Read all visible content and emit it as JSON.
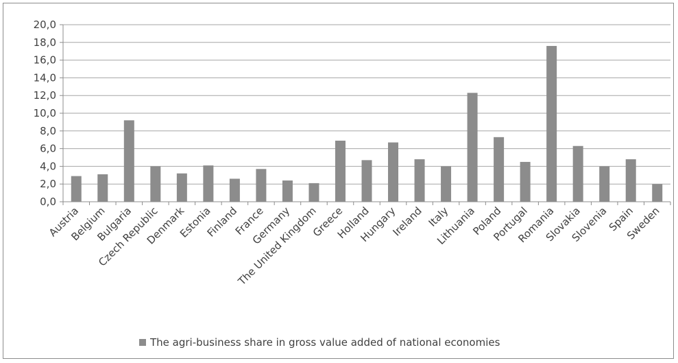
{
  "chart_data": {
    "type": "bar",
    "categories": [
      "Austria",
      "Belgium",
      "Bulgaria",
      "Czech Republic",
      "Denmark",
      "Estonia",
      "Finland",
      "France",
      "Germany",
      "The United Kingdom",
      "Greece",
      "Holland",
      "Hungary",
      "Ireland",
      "Italy",
      "Lithuania",
      "Poland",
      "Portugal",
      "Romania",
      "Slovakia",
      "Slovenia",
      "Spain",
      "Sweden"
    ],
    "series": [
      {
        "name": "The agri-business share in gross value added of national economies",
        "values": [
          2.9,
          3.1,
          9.2,
          4.0,
          3.2,
          4.1,
          2.6,
          3.7,
          2.4,
          2.1,
          6.9,
          4.7,
          6.7,
          4.8,
          4.0,
          12.3,
          7.3,
          4.5,
          17.6,
          6.3,
          4.0,
          4.8,
          2.0
        ],
        "color": "#8c8c8c"
      }
    ],
    "yticks": [
      "0,0",
      "2,0",
      "4,0",
      "6,0",
      "8,0",
      "10,0",
      "12,0",
      "14,0",
      "16,0",
      "18,0",
      "20,0"
    ],
    "ylim": [
      0,
      20
    ],
    "grid": true,
    "legend_position": "bottom"
  }
}
